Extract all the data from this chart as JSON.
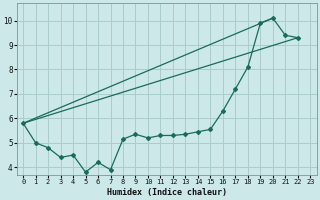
{
  "title": "",
  "xlabel": "Humidex (Indice chaleur)",
  "background_color": "#cce8e8",
  "grid_color": "#aacccc",
  "line_color": "#1a6b5a",
  "xlim": [
    -0.5,
    23.5
  ],
  "ylim": [
    3.7,
    10.7
  ],
  "xticks": [
    0,
    1,
    2,
    3,
    4,
    5,
    6,
    7,
    8,
    9,
    10,
    11,
    12,
    13,
    14,
    15,
    16,
    17,
    18,
    19,
    20,
    21,
    22,
    23
  ],
  "yticks": [
    4,
    5,
    6,
    7,
    8,
    9,
    10
  ],
  "main_x": [
    0,
    1,
    2,
    3,
    4,
    5,
    6,
    7,
    8,
    9,
    10,
    11,
    12,
    13,
    14,
    15,
    16,
    17,
    18,
    19,
    20,
    21,
    22
  ],
  "main_y": [
    5.8,
    5.0,
    4.8,
    4.4,
    4.5,
    3.8,
    4.2,
    3.9,
    5.15,
    5.35,
    5.2,
    5.3,
    5.3,
    5.35,
    5.45,
    5.55,
    6.3,
    7.2,
    8.1,
    9.9,
    10.1,
    9.4,
    9.3
  ],
  "line1_x": [
    0,
    22
  ],
  "line1_y": [
    5.8,
    9.3
  ],
  "line2_x": [
    0,
    20
  ],
  "line2_y": [
    5.8,
    10.1
  ]
}
